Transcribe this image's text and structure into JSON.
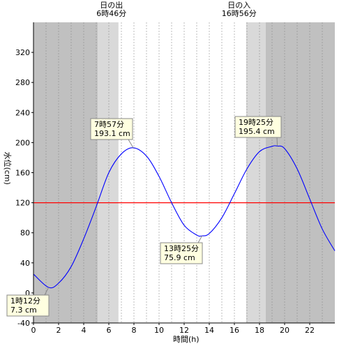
{
  "chart_data": {
    "type": "line",
    "title": "",
    "xlabel": "時間(h)",
    "ylabel": "水位(cm)",
    "xlim": [
      0,
      24
    ],
    "ylim": [
      -40,
      360
    ],
    "x_ticks": [
      0,
      2,
      4,
      6,
      8,
      10,
      12,
      14,
      16,
      18,
      20,
      22
    ],
    "y_ticks": [
      -40,
      0,
      40,
      80,
      120,
      160,
      200,
      240,
      280,
      320
    ],
    "grid": "vertical dashed",
    "reference_line": {
      "value": 120,
      "color": "#ff0000"
    },
    "sunrise": {
      "label_line1": "日の出",
      "label_line2": "6時46分",
      "hour": 6.767
    },
    "sunset": {
      "label_line1": "日の入",
      "label_line2": "16時56分",
      "hour": 16.933
    },
    "twilight_before_sunrise": [
      5.1,
      6.767
    ],
    "twilight_after_sunset": [
      16.933,
      18.5
    ],
    "series": [
      {
        "color": "#0000ff",
        "x": [
          0,
          1.2,
          2,
          3,
          4,
          5,
          6,
          7,
          7.95,
          9,
          10,
          11,
          12,
          13,
          13.42,
          14,
          15,
          16,
          17,
          18,
          19,
          19.42,
          20,
          21,
          22,
          23,
          24
        ],
        "y": [
          25,
          7.3,
          13,
          35,
          72,
          115,
          160,
          185,
          193.1,
          182,
          155,
          120,
          90,
          77,
          75.9,
          79,
          100,
          132,
          165,
          188,
          195,
          195.4,
          192,
          165,
          125,
          85,
          56
        ]
      }
    ],
    "extrema": [
      {
        "time": "1時12分",
        "value": "7.3 cm",
        "hour": 1.2,
        "level": 7.3,
        "kind": "low"
      },
      {
        "time": "7時57分",
        "value": "193.1 cm",
        "hour": 7.95,
        "level": 193.1,
        "kind": "high"
      },
      {
        "time": "13時25分",
        "value": "75.9 cm",
        "hour": 13.42,
        "level": 75.9,
        "kind": "low"
      },
      {
        "time": "19時25分",
        "value": "195.4 cm",
        "hour": 19.42,
        "level": 195.4,
        "kind": "high"
      }
    ],
    "colors": {
      "night": "#c0c0c0",
      "twilight": "#d9d9d9",
      "day": "#ffffff",
      "curve": "#0000ff",
      "reference": "#ff0000"
    }
  }
}
